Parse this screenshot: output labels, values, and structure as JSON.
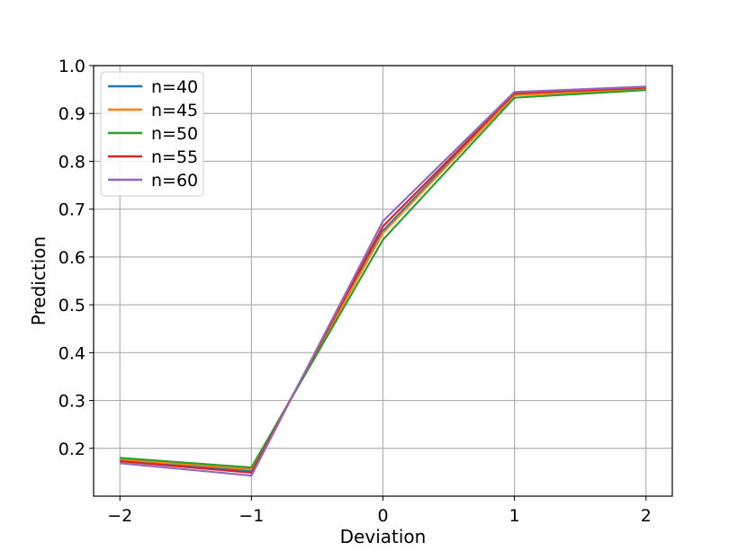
{
  "chart_data": {
    "type": "line",
    "title": "",
    "xlabel": "Deviation",
    "ylabel": "Prediction",
    "x": [
      -2,
      -1,
      0,
      1,
      2
    ],
    "x_tick_labels": [
      "−2",
      "−1",
      "0",
      "1",
      "2"
    ],
    "y_tick_labels": [
      "0.2",
      "0.3",
      "0.4",
      "0.5",
      "0.6",
      "0.7",
      "0.8",
      "0.9",
      "1.0"
    ],
    "y_ticks": [
      0.2,
      0.3,
      0.4,
      0.5,
      0.6,
      0.7,
      0.8,
      0.9,
      1.0
    ],
    "xlim": [
      -2.2,
      2.2
    ],
    "ylim": [
      0.1,
      1.0
    ],
    "grid": true,
    "legend_position": "top-left",
    "series": [
      {
        "name": "n=40",
        "color": "#1f77b4",
        "values": [
          0.175,
          0.152,
          0.655,
          0.94,
          0.952
        ]
      },
      {
        "name": "n=45",
        "color": "#ff7f0e",
        "values": [
          0.177,
          0.156,
          0.65,
          0.938,
          0.951
        ]
      },
      {
        "name": "n=50",
        "color": "#2ca02c",
        "values": [
          0.18,
          0.16,
          0.636,
          0.933,
          0.949
        ]
      },
      {
        "name": "n=55",
        "color": "#d62728",
        "values": [
          0.173,
          0.149,
          0.664,
          0.942,
          0.954
        ]
      },
      {
        "name": "n=60",
        "color": "#9467bd",
        "values": [
          0.169,
          0.143,
          0.675,
          0.945,
          0.956
        ]
      }
    ]
  }
}
